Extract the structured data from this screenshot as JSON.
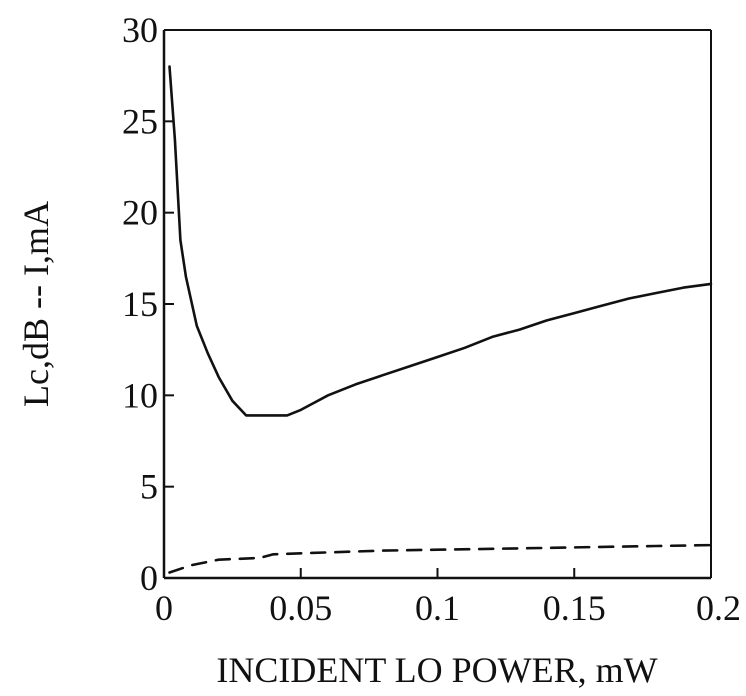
{
  "chart_data": {
    "type": "line",
    "title": "",
    "xlabel": "INCIDENT LO POWER, mW",
    "ylabel": "Lc,dB -- I,mA",
    "xlim": [
      0,
      0.2
    ],
    "ylim": [
      0,
      30
    ],
    "x_ticks": [
      {
        "value": 0,
        "label": "0"
      },
      {
        "value": 0.05,
        "label": "0.05"
      },
      {
        "value": 0.1,
        "label": "0.1"
      },
      {
        "value": 0.15,
        "label": "0.15"
      },
      {
        "value": 0.2,
        "label": "0.2"
      }
    ],
    "y_ticks": [
      {
        "value": 0,
        "label": "0"
      },
      {
        "value": 5,
        "label": "5"
      },
      {
        "value": 10,
        "label": "10"
      },
      {
        "value": 15,
        "label": "15"
      },
      {
        "value": 20,
        "label": "20"
      },
      {
        "value": 25,
        "label": "25"
      },
      {
        "value": 30,
        "label": "30"
      }
    ],
    "grid": false,
    "series": [
      {
        "style": "solid",
        "color": "#111111",
        "points": [
          [
            0.002,
            28.0
          ],
          [
            0.004,
            24.0
          ],
          [
            0.006,
            18.5
          ],
          [
            0.008,
            16.5
          ],
          [
            0.012,
            13.8
          ],
          [
            0.016,
            12.3
          ],
          [
            0.02,
            11.0
          ],
          [
            0.025,
            9.7
          ],
          [
            0.03,
            8.9
          ],
          [
            0.04,
            8.9
          ],
          [
            0.045,
            8.9
          ],
          [
            0.05,
            9.2
          ],
          [
            0.055,
            9.6
          ],
          [
            0.06,
            10.0
          ],
          [
            0.07,
            10.6
          ],
          [
            0.08,
            11.1
          ],
          [
            0.09,
            11.6
          ],
          [
            0.1,
            12.1
          ],
          [
            0.11,
            12.6
          ],
          [
            0.12,
            13.2
          ],
          [
            0.13,
            13.6
          ],
          [
            0.14,
            14.1
          ],
          [
            0.15,
            14.5
          ],
          [
            0.16,
            14.9
          ],
          [
            0.17,
            15.3
          ],
          [
            0.18,
            15.6
          ],
          [
            0.19,
            15.9
          ],
          [
            0.2,
            16.1
          ]
        ]
      },
      {
        "style": "dashed",
        "color": "#111111",
        "points": [
          [
            0.002,
            0.3
          ],
          [
            0.01,
            0.7
          ],
          [
            0.02,
            1.0
          ],
          [
            0.035,
            1.1
          ],
          [
            0.04,
            1.3
          ],
          [
            0.06,
            1.4
          ],
          [
            0.08,
            1.5
          ],
          [
            0.1,
            1.55
          ],
          [
            0.12,
            1.6
          ],
          [
            0.14,
            1.65
          ],
          [
            0.16,
            1.7
          ],
          [
            0.18,
            1.75
          ],
          [
            0.2,
            1.8
          ]
        ]
      }
    ]
  }
}
